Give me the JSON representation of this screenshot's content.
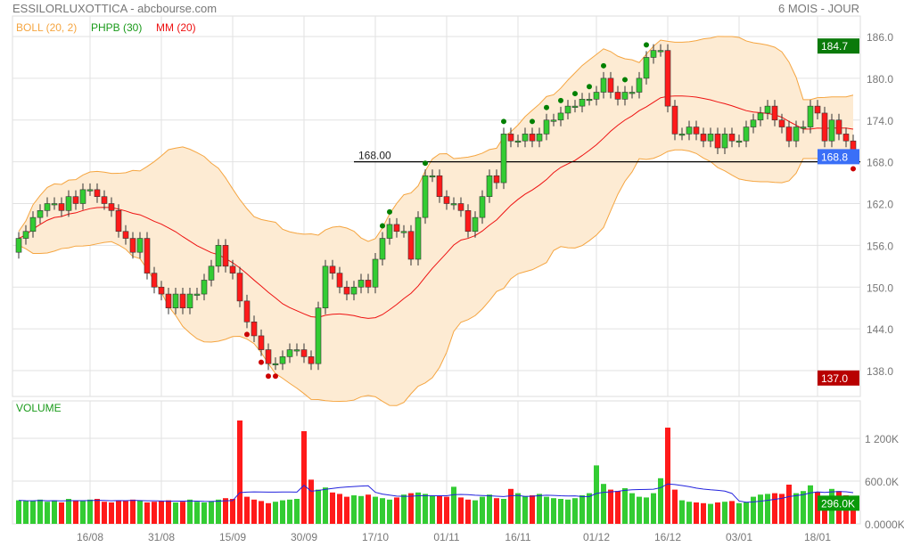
{
  "header": {
    "title": "ESSILORLUXOTTICA - abcbourse.com",
    "period": "6 MOIS - JOUR"
  },
  "legend": {
    "boll": "BOLL (20, 2)",
    "phpb": "PHPB (30)",
    "mm": "MM (20)",
    "volume": "VOLUME"
  },
  "colors": {
    "up": "#33cc33",
    "down": "#ff1a1a",
    "boll": "#f5a540",
    "boll_fill": "#fdebd3",
    "mm": "#ee1111",
    "vol_ma": "#2222dd",
    "phpb_up": "#008000",
    "phpb_down": "#cc0000"
  },
  "chart_data": {
    "type": "candlestick",
    "price_axis": {
      "ticks": [
        "186.0",
        "180.0",
        "174.0",
        "168.0",
        "162.0",
        "156.0",
        "150.0",
        "144.0",
        "138.0"
      ],
      "range": [
        138,
        186
      ]
    },
    "volume_axis": {
      "ticks": [
        "1 200K",
        "600.0K",
        "0.0000K"
      ],
      "range": [
        0,
        1200
      ]
    },
    "badges": {
      "high": "184.7",
      "last": "168.8",
      "low": "137.0",
      "volume": "296.0K"
    },
    "badge_values": {
      "high": 184.7,
      "last": 168.8,
      "low": 137.0,
      "volume": 296
    },
    "reference_line": {
      "label": "168.00",
      "value": 168.0
    },
    "x_labels": [
      {
        "i": 10,
        "label": "16/08"
      },
      {
        "i": 20,
        "label": "31/08"
      },
      {
        "i": 30,
        "label": "15/09"
      },
      {
        "i": 40,
        "label": "30/09"
      },
      {
        "i": 50,
        "label": "17/10"
      },
      {
        "i": 60,
        "label": "01/11"
      },
      {
        "i": 70,
        "label": "16/11"
      },
      {
        "i": 81,
        "label": "01/12"
      },
      {
        "i": 91,
        "label": "16/12"
      },
      {
        "i": 101,
        "label": "03/01"
      },
      {
        "i": 112,
        "label": "18/01"
      }
    ],
    "close": [
      157,
      158,
      160,
      161,
      162,
      162,
      161,
      163,
      162,
      164,
      164,
      163,
      162,
      161,
      158,
      157,
      155,
      157,
      152,
      150,
      149,
      147,
      149,
      147,
      149,
      149,
      151,
      153,
      156,
      153,
      152,
      148,
      145,
      143,
      141,
      139,
      139,
      140,
      141,
      141,
      140,
      139,
      147,
      153,
      152,
      150,
      149,
      150,
      151,
      150,
      154,
      157,
      159,
      158,
      158,
      154,
      160,
      166,
      166,
      163,
      162,
      162,
      161,
      158,
      160,
      163,
      166,
      165,
      172,
      171,
      171,
      172,
      171,
      172,
      174,
      174,
      175,
      176,
      176,
      177,
      177,
      178,
      180,
      178,
      177,
      178,
      178,
      180,
      183,
      184,
      184,
      176,
      172,
      172,
      173,
      172,
      171,
      172,
      170,
      172,
      171,
      171,
      173,
      174,
      175,
      176,
      174,
      173,
      171,
      173,
      173,
      176,
      175,
      171,
      174,
      172,
      171,
      168.8
    ],
    "open": [
      155,
      157,
      158,
      160,
      161,
      162,
      162,
      161,
      163,
      162,
      164,
      164,
      163,
      162,
      161,
      158,
      157,
      155,
      157,
      152,
      150,
      149,
      147,
      149,
      147,
      149,
      149,
      151,
      153,
      156,
      153,
      152,
      148,
      145,
      143,
      141,
      139,
      139,
      140,
      141,
      141,
      140,
      139,
      147,
      153,
      152,
      150,
      149,
      150,
      151,
      150,
      154,
      157,
      159,
      158,
      158,
      154,
      160,
      166,
      166,
      163,
      162,
      162,
      161,
      158,
      160,
      163,
      166,
      165,
      172,
      171,
      171,
      172,
      171,
      172,
      174,
      174,
      175,
      176,
      176,
      177,
      177,
      178,
      180,
      178,
      177,
      178,
      178,
      180,
      183,
      184,
      184,
      176,
      172,
      172,
      173,
      172,
      171,
      172,
      170,
      172,
      171,
      171,
      173,
      174,
      175,
      176,
      174,
      173,
      171,
      173,
      173,
      176,
      175,
      171,
      174,
      172,
      171
    ],
    "phpb_up": [
      51,
      52,
      57,
      68,
      72,
      74,
      76,
      78,
      80,
      82,
      85,
      88
    ],
    "phpb_down": [
      32,
      34,
      35,
      36,
      117
    ],
    "volume_k": [
      330,
      320,
      320,
      340,
      310,
      330,
      300,
      350,
      330,
      320,
      340,
      350,
      310,
      300,
      330,
      320,
      340,
      330,
      300,
      310,
      320,
      330,
      300,
      310,
      340,
      310,
      300,
      320,
      340,
      360,
      350,
      1450,
      380,
      340,
      320,
      290,
      310,
      330,
      340,
      350,
      1300,
      620,
      480,
      510,
      440,
      420,
      380,
      400,
      390,
      410,
      380,
      360,
      340,
      370,
      410,
      430,
      440,
      420,
      400,
      390,
      380,
      520,
      370,
      340,
      330,
      380,
      410,
      360,
      350,
      490,
      430,
      390,
      400,
      420,
      380,
      360,
      350,
      340,
      360,
      400,
      430,
      820,
      560,
      480,
      460,
      500,
      430,
      380,
      370,
      430,
      640,
      1350,
      480,
      330,
      310,
      300,
      290,
      280,
      300,
      310,
      320,
      290,
      300,
      380,
      410,
      420,
      430,
      420,
      550,
      430,
      460,
      540,
      450,
      300,
      490,
      460,
      400,
      296
    ]
  }
}
